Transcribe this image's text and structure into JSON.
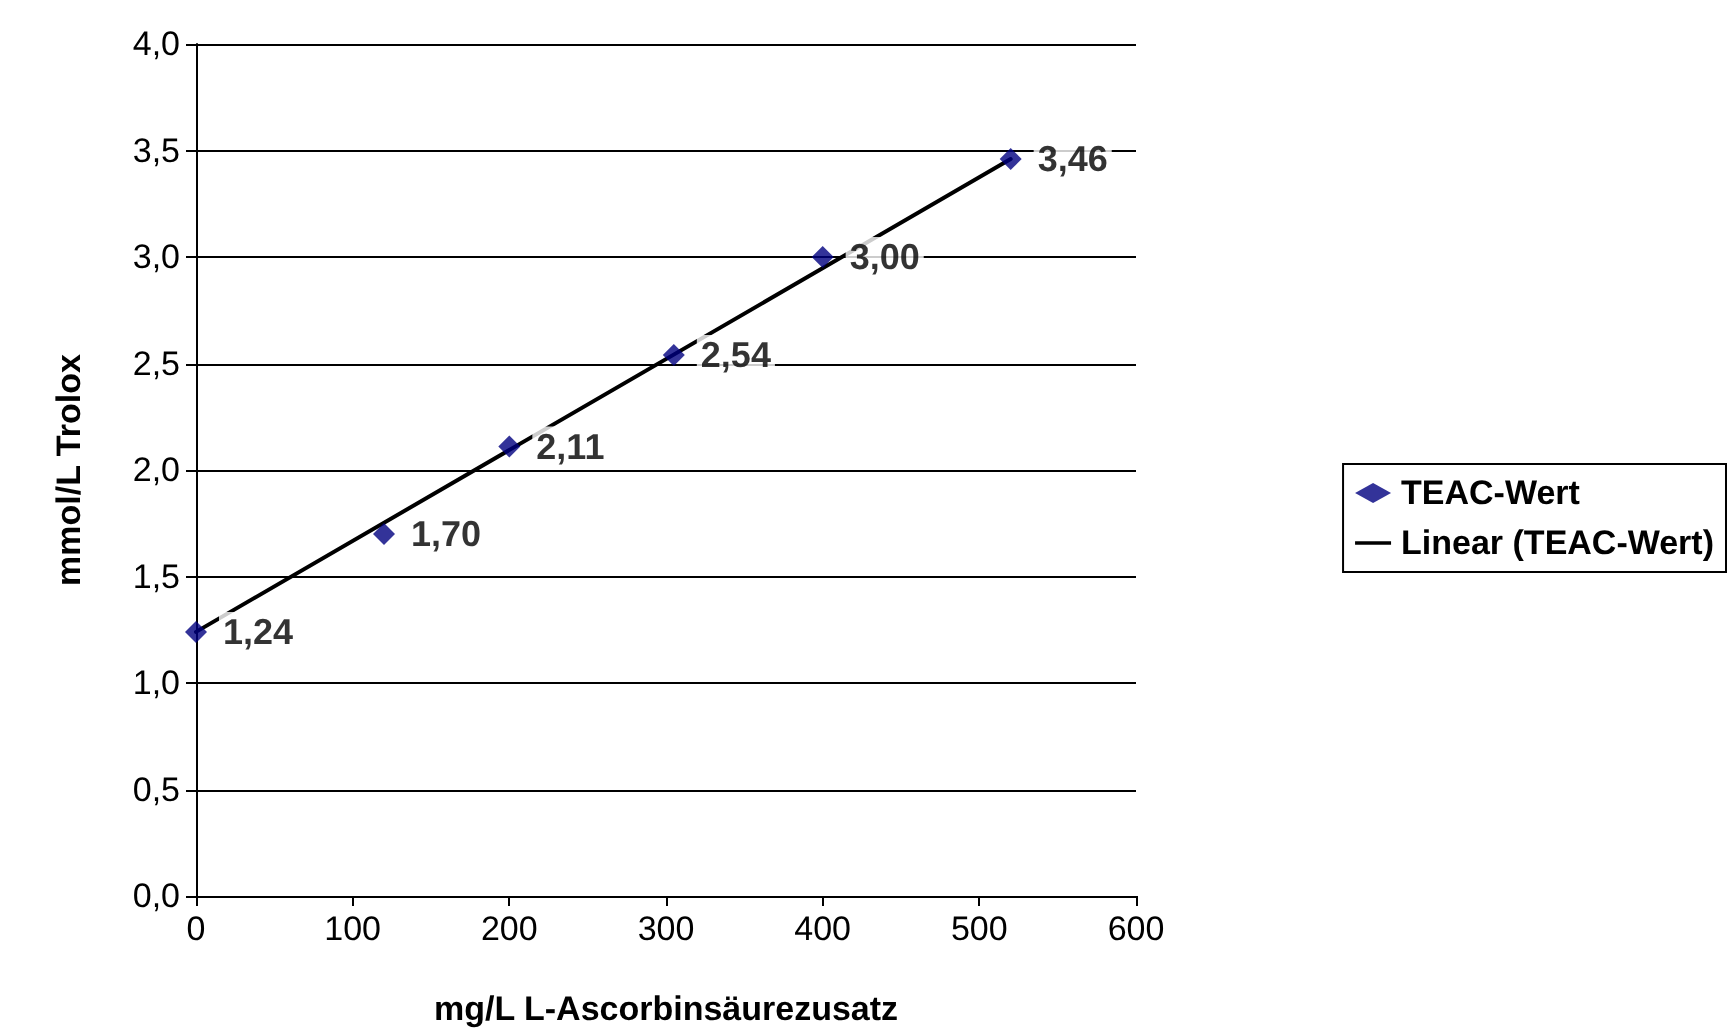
{
  "chart_data": {
    "type": "scatter",
    "xlabel": "mg/L L-Ascorbinsäurezusatz",
    "ylabel": "mmol/L Trolox",
    "series": [
      {
        "name": "TEAC-Wert",
        "color": "#000080",
        "marker": "diamond",
        "x": [
          0,
          120,
          200,
          305,
          400,
          520
        ],
        "values": [
          1.24,
          1.7,
          2.11,
          2.54,
          3.0,
          3.46
        ],
        "value_labels": [
          "1,24",
          "1,70",
          "2,11",
          "2,54",
          "3,00",
          "3,46"
        ]
      },
      {
        "name": "Linear (TEAC-Wert)",
        "type": "line",
        "color": "#000000",
        "marker": "none",
        "line_style": "solid",
        "x": [
          0,
          520
        ],
        "values": [
          1.24,
          3.46
        ]
      }
    ],
    "xlim": [
      0,
      600
    ],
    "xticks": [
      0,
      100,
      200,
      300,
      400,
      500,
      600
    ],
    "ylim": [
      0,
      4
    ],
    "yticks": [
      {
        "value": 0,
        "label": "0,0"
      },
      {
        "value": 0.5,
        "label": "0,5"
      },
      {
        "value": 1,
        "label": "1,0"
      },
      {
        "value": 1.5,
        "label": "1,5"
      },
      {
        "value": 2,
        "label": "2,0"
      },
      {
        "value": 2.5,
        "label": "2,5"
      },
      {
        "value": 3,
        "label": "3,0"
      },
      {
        "value": 3.5,
        "label": "3,5"
      },
      {
        "value": 4,
        "label": "4,0"
      }
    ],
    "grid": "y",
    "legend": "right"
  }
}
